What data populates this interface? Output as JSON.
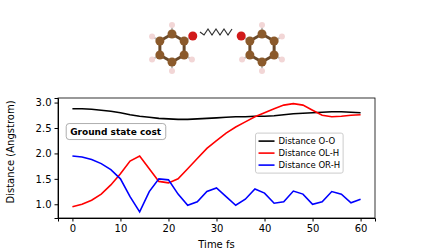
{
  "chart_data": {
    "type": "line",
    "x_label": "Time fs",
    "y_label": "Distance (Angstrom)",
    "annotation": "Ground state cost",
    "x": [
      0,
      2,
      4,
      6,
      8,
      10,
      12,
      14,
      16,
      18,
      20,
      22,
      24,
      26,
      28,
      30,
      32,
      34,
      36,
      38,
      40,
      42,
      44,
      46,
      48,
      50,
      52,
      54,
      56,
      58,
      60
    ],
    "series": [
      {
        "name": "Distance O-O",
        "color": "#000000",
        "values": [
          2.88,
          2.88,
          2.87,
          2.85,
          2.83,
          2.8,
          2.76,
          2.73,
          2.71,
          2.69,
          2.68,
          2.67,
          2.67,
          2.68,
          2.69,
          2.7,
          2.71,
          2.72,
          2.72,
          2.73,
          2.73,
          2.74,
          2.76,
          2.78,
          2.79,
          2.8,
          2.81,
          2.82,
          2.82,
          2.81,
          2.8
        ]
      },
      {
        "name": "Distance OL-H",
        "color": "#ff0000",
        "values": [
          0.95,
          1.0,
          1.08,
          1.2,
          1.38,
          1.6,
          1.85,
          1.95,
          1.7,
          1.45,
          1.42,
          1.5,
          1.7,
          1.9,
          2.1,
          2.25,
          2.4,
          2.52,
          2.62,
          2.72,
          2.8,
          2.88,
          2.95,
          2.98,
          2.95,
          2.85,
          2.75,
          2.72,
          2.73,
          2.75,
          2.76
        ]
      },
      {
        "name": "Distance OR-H",
        "color": "#0000ff",
        "values": [
          1.95,
          1.93,
          1.88,
          1.8,
          1.68,
          1.5,
          1.15,
          0.85,
          1.25,
          1.5,
          1.48,
          1.2,
          0.98,
          1.05,
          1.25,
          1.32,
          1.15,
          0.98,
          1.1,
          1.3,
          1.22,
          1.02,
          1.05,
          1.26,
          1.2,
          1.0,
          1.05,
          1.25,
          1.2,
          1.03,
          1.1
        ]
      }
    ],
    "xlim": [
      -3,
      63
    ],
    "ylim": [
      0.73,
      3.09
    ],
    "xticks": [
      0,
      10,
      20,
      30,
      40,
      50,
      60
    ],
    "yticks": [
      {
        "value": 1.0,
        "label": "1.0"
      },
      {
        "value": 1.5,
        "label": "1.5"
      },
      {
        "value": 2.0,
        "label": "2.0"
      },
      {
        "value": 2.5,
        "label": "2.5"
      },
      {
        "value": 3.0,
        "label": "3.0"
      }
    ],
    "legend": "right",
    "grid": false
  }
}
